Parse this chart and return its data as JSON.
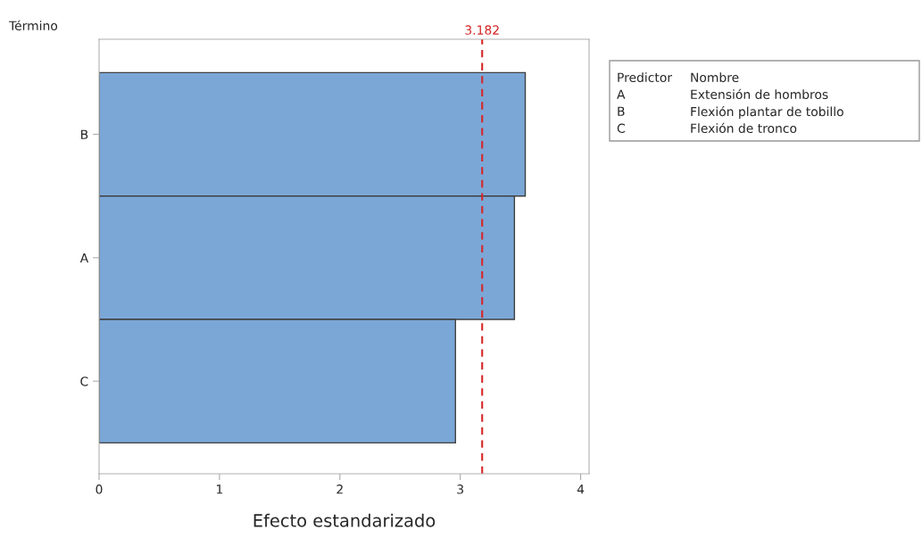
{
  "chart_data": {
    "type": "bar",
    "orientation": "horizontal",
    "xlabel": "Efecto estandarizado",
    "ylabel": "Término",
    "categories": [
      "B",
      "A",
      "C"
    ],
    "values": [
      3.54,
      3.45,
      2.96
    ],
    "color": "#7ba7d7",
    "xlim": [
      0,
      4.07
    ],
    "xticks": [
      0,
      1,
      2,
      3,
      4
    ],
    "grid": false,
    "ref_lines": [
      {
        "axis": "x",
        "value": 3.182,
        "label": "3.182",
        "color": "#d62728",
        "line_style": "dashed"
      }
    ],
    "annotations": [
      "Predictor\tNombre",
      "A\tExtensión de hombros",
      "B\tFlexión plantar de tobillo",
      "C\tFlexión de tronco"
    ]
  }
}
